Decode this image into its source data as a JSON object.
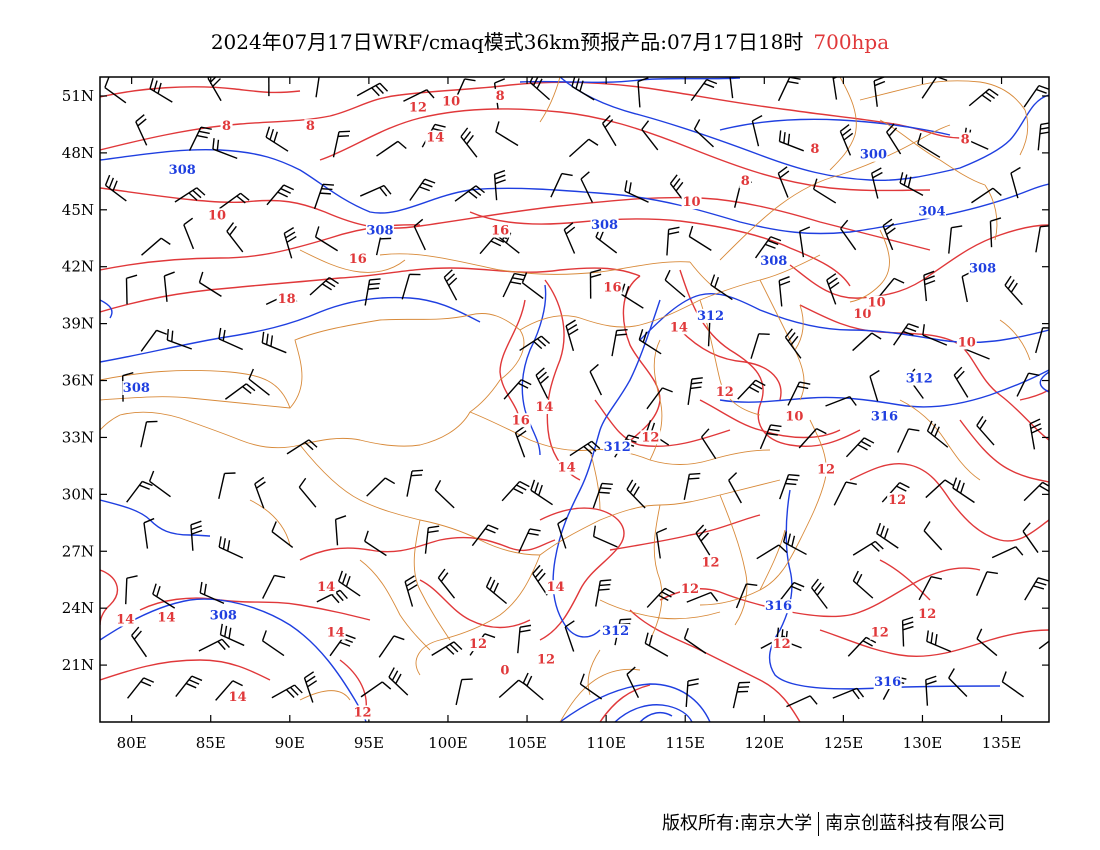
{
  "header": {
    "title_main": "2024年07月17日WRF/cmaq模式36km预报产品:07月17日18时",
    "title_level": "700hpa"
  },
  "footer": {
    "owner": "版权所有:南京大学",
    "company": "南京创蓝科技有限公司"
  },
  "colors": {
    "temperature": "#e0383a",
    "geopotential": "#1f3fe0",
    "boundary": "#d88a3a",
    "wind": "#000000"
  },
  "map_data": {
    "lon_range": [
      78,
      138
    ],
    "lat_range": [
      18,
      52
    ],
    "x_ticks": [
      "80E",
      "85E",
      "90E",
      "95E",
      "100E",
      "105E",
      "110E",
      "115E",
      "120E",
      "125E",
      "130E",
      "135E"
    ],
    "x_tick_values": [
      80,
      85,
      90,
      95,
      100,
      105,
      110,
      115,
      120,
      125,
      130,
      135
    ],
    "y_ticks": [
      "51N",
      "48N",
      "45N",
      "42N",
      "39N",
      "36N",
      "33N",
      "30N",
      "27N",
      "24N",
      "21N"
    ],
    "y_tick_values": [
      51,
      48,
      45,
      42,
      39,
      36,
      33,
      30,
      27,
      24,
      21
    ],
    "temperature_labels": [
      {
        "text": "8",
        "lon": 86,
        "lat": 49.3
      },
      {
        "text": "8",
        "lon": 91.3,
        "lat": 49.3
      },
      {
        "text": "12",
        "lon": 98.1,
        "lat": 50.3
      },
      {
        "text": "10",
        "lon": 100.2,
        "lat": 50.6
      },
      {
        "text": "8",
        "lon": 103.3,
        "lat": 50.9
      },
      {
        "text": "14",
        "lon": 99.2,
        "lat": 48.7
      },
      {
        "text": "8",
        "lon": 123.2,
        "lat": 48.1
      },
      {
        "text": "8",
        "lon": 132.7,
        "lat": 48.6
      },
      {
        "text": "8",
        "lon": 118.8,
        "lat": 46.4
      },
      {
        "text": "10",
        "lon": 85.4,
        "lat": 44.6
      },
      {
        "text": "10",
        "lon": 115.4,
        "lat": 45.3
      },
      {
        "text": "16",
        "lon": 103.3,
        "lat": 43.8
      },
      {
        "text": "16",
        "lon": 94.3,
        "lat": 42.3
      },
      {
        "text": "16",
        "lon": 110.4,
        "lat": 40.8
      },
      {
        "text": "18",
        "lon": 89.8,
        "lat": 40.2
      },
      {
        "text": "14",
        "lon": 114.6,
        "lat": 38.7
      },
      {
        "text": "10",
        "lon": 126.2,
        "lat": 39.4
      },
      {
        "text": "10",
        "lon": 127.1,
        "lat": 40.0
      },
      {
        "text": "10",
        "lon": 132.8,
        "lat": 37.9
      },
      {
        "text": "12",
        "lon": 117.5,
        "lat": 35.3
      },
      {
        "text": "14",
        "lon": 106.1,
        "lat": 34.5
      },
      {
        "text": "16",
        "lon": 104.6,
        "lat": 33.8
      },
      {
        "text": "10",
        "lon": 121.9,
        "lat": 34.0
      },
      {
        "text": "12",
        "lon": 112.8,
        "lat": 32.9
      },
      {
        "text": "14",
        "lon": 107.5,
        "lat": 31.3
      },
      {
        "text": "12",
        "lon": 123.9,
        "lat": 31.2
      },
      {
        "text": "12",
        "lon": 128.4,
        "lat": 29.6
      },
      {
        "text": "12",
        "lon": 116.6,
        "lat": 26.3
      },
      {
        "text": "14",
        "lon": 92.3,
        "lat": 25.0
      },
      {
        "text": "14",
        "lon": 106.8,
        "lat": 25.0
      },
      {
        "text": "12",
        "lon": 115.3,
        "lat": 24.9
      },
      {
        "text": "14",
        "lon": 79.6,
        "lat": 23.3
      },
      {
        "text": "14",
        "lon": 82.2,
        "lat": 23.4
      },
      {
        "text": "14",
        "lon": 92.9,
        "lat": 22.6
      },
      {
        "text": "12",
        "lon": 101.9,
        "lat": 22.0
      },
      {
        "text": "12",
        "lon": 106.2,
        "lat": 21.2
      },
      {
        "text": "0",
        "lon": 103.6,
        "lat": 20.6
      },
      {
        "text": "12",
        "lon": 121.1,
        "lat": 22.0
      },
      {
        "text": "12",
        "lon": 130.3,
        "lat": 23.6
      },
      {
        "text": "12",
        "lon": 127.3,
        "lat": 22.6
      },
      {
        "text": "14",
        "lon": 86.7,
        "lat": 19.2
      },
      {
        "text": "12",
        "lon": 94.6,
        "lat": 18.4
      }
    ],
    "geopotential_labels": [
      {
        "text": "308",
        "lon": 83.2,
        "lat": 47.0
      },
      {
        "text": "308",
        "lon": 95.7,
        "lat": 43.8
      },
      {
        "text": "308",
        "lon": 109.9,
        "lat": 44.1
      },
      {
        "text": "308",
        "lon": 120.6,
        "lat": 42.2
      },
      {
        "text": "308",
        "lon": 133.8,
        "lat": 41.8
      },
      {
        "text": "300",
        "lon": 126.9,
        "lat": 47.8
      },
      {
        "text": "304",
        "lon": 130.6,
        "lat": 44.8
      },
      {
        "text": "312",
        "lon": 116.6,
        "lat": 39.3
      },
      {
        "text": "312",
        "lon": 129.8,
        "lat": 36.0
      },
      {
        "text": "308",
        "lon": 80.3,
        "lat": 35.5
      },
      {
        "text": "316",
        "lon": 127.6,
        "lat": 34.0
      },
      {
        "text": "312",
        "lon": 110.7,
        "lat": 32.4
      },
      {
        "text": "312",
        "lon": 110.6,
        "lat": 22.7
      },
      {
        "text": "308",
        "lon": 85.8,
        "lat": 23.5
      },
      {
        "text": "316",
        "lon": 120.9,
        "lat": 24.0
      },
      {
        "text": "316",
        "lon": 127.8,
        "lat": 20.0
      }
    ]
  }
}
